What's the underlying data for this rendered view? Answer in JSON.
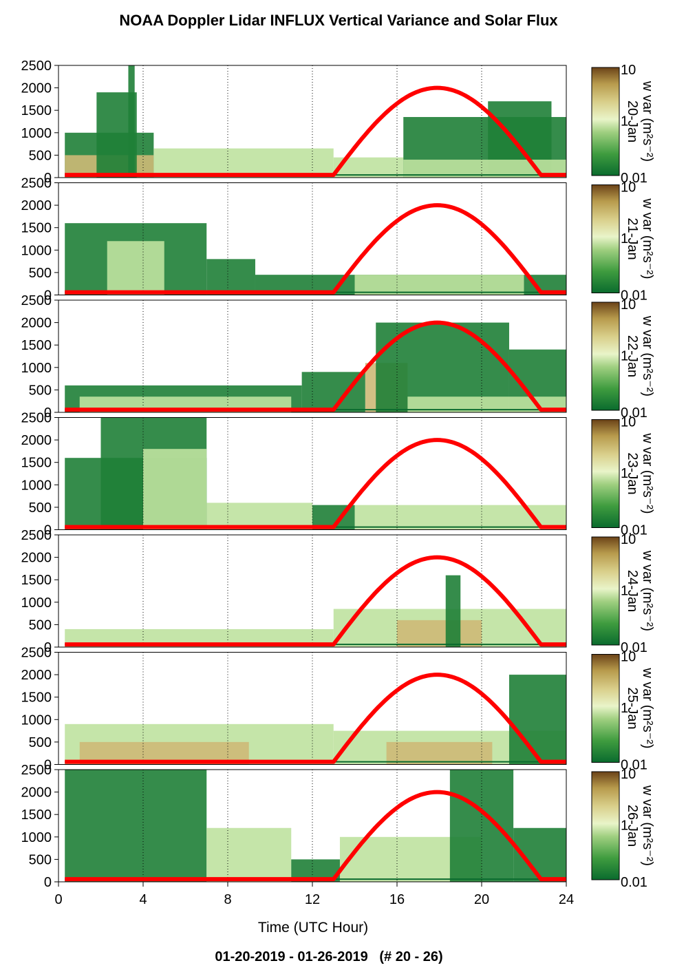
{
  "title": "NOAA Doppler Lidar INFLUX Vertical Variance and Solar Flux",
  "footer": "01-20-2019 - 01-26-2019   (# 20 - 26)",
  "colors": {
    "solar_curve": "#ff0000",
    "colormap": [
      "#0a6b2e",
      "#3f9c3f",
      "#9fcf80",
      "#e9f4c9",
      "#d9cf8b",
      "#b79a4c",
      "#6b4318"
    ]
  },
  "chart_data": {
    "type": "heatmap",
    "xlabel": "Time (UTC Hour)",
    "xlim": [
      0,
      24
    ],
    "x_ticks": [
      "0",
      "4",
      "8",
      "12",
      "16",
      "20",
      "24"
    ],
    "ylim": [
      0,
      2500
    ],
    "y_ticks": [
      "0",
      "500",
      "1000",
      "1500",
      "2000",
      "2500"
    ],
    "grid": "vertical dotted lines at 4-hour intervals",
    "colorbar": {
      "label": "w var (m²s⁻²)",
      "ticks": [
        "10",
        "1",
        "0.01"
      ],
      "scale": "log"
    },
    "solar_flux": {
      "sunrise_hour": 13.0,
      "solar_noon_hour": 18.0,
      "sunset_hour": 22.8,
      "peak_on_height_axis": 2000
    },
    "panels": [
      {
        "date": "20-Jan",
        "regions": [
          {
            "x": [
              0.3,
              4.5
            ],
            "top": 1000,
            "level": "low"
          },
          {
            "x": [
              0.3,
              4.5
            ],
            "top": 500,
            "level": "high"
          },
          {
            "x": [
              1.8,
              3.7
            ],
            "top": 1900,
            "level": "low"
          },
          {
            "x": [
              3.3,
              3.6
            ],
            "top": 2500,
            "level": "low"
          },
          {
            "x": [
              4.5,
              13.0
            ],
            "top": 650,
            "level": "mid"
          },
          {
            "x": [
              13.0,
              16.3
            ],
            "top": 450,
            "level": "mid"
          },
          {
            "x": [
              16.3,
              24.0
            ],
            "top": 1350,
            "level": "low"
          },
          {
            "x": [
              20.3,
              23.3
            ],
            "top": 1700,
            "level": "low"
          },
          {
            "x": [
              16.3,
              24.0
            ],
            "top": 400,
            "level": "mid"
          }
        ]
      },
      {
        "date": "21-Jan",
        "regions": [
          {
            "x": [
              0.3,
              7.0
            ],
            "top": 1600,
            "level": "low"
          },
          {
            "x": [
              2.3,
              5.0
            ],
            "top": 1200,
            "level": "mid"
          },
          {
            "x": [
              7.0,
              9.3
            ],
            "top": 800,
            "level": "low"
          },
          {
            "x": [
              9.3,
              24.0
            ],
            "top": 450,
            "level": "low"
          },
          {
            "x": [
              14.0,
              22.0
            ],
            "top": 450,
            "level": "mid"
          }
        ]
      },
      {
        "date": "22-Jan",
        "regions": [
          {
            "x": [
              0.3,
              11.5
            ],
            "top": 600,
            "level": "low"
          },
          {
            "x": [
              1.0,
              11.0
            ],
            "top": 350,
            "level": "mid"
          },
          {
            "x": [
              11.5,
              14.5
            ],
            "top": 900,
            "level": "low"
          },
          {
            "x": [
              14.5,
              16.5
            ],
            "top": 1100,
            "level": "high"
          },
          {
            "x": [
              15.0,
              21.3
            ],
            "top": 2000,
            "level": "low"
          },
          {
            "x": [
              21.3,
              24.0
            ],
            "top": 1400,
            "level": "low"
          },
          {
            "x": [
              16.5,
              24.0
            ],
            "top": 350,
            "level": "mid"
          }
        ]
      },
      {
        "date": "23-Jan",
        "regions": [
          {
            "x": [
              0.3,
              7.0
            ],
            "top": 1600,
            "level": "low"
          },
          {
            "x": [
              2.0,
              7.0
            ],
            "top": 2500,
            "level": "low"
          },
          {
            "x": [
              4.0,
              7.0
            ],
            "top": 1800,
            "level": "mid"
          },
          {
            "x": [
              7.0,
              12.0
            ],
            "top": 600,
            "level": "mid"
          },
          {
            "x": [
              12.0,
              14.0
            ],
            "top": 550,
            "level": "low"
          },
          {
            "x": [
              14.0,
              24.0
            ],
            "top": 550,
            "level": "mid"
          }
        ]
      },
      {
        "date": "24-Jan",
        "regions": [
          {
            "x": [
              0.3,
              13.0
            ],
            "top": 400,
            "level": "mid"
          },
          {
            "x": [
              13.0,
              24.0
            ],
            "top": 850,
            "level": "mid"
          },
          {
            "x": [
              16.0,
              20.0
            ],
            "top": 600,
            "level": "high"
          },
          {
            "x": [
              18.3,
              19.0
            ],
            "top": 1600,
            "level": "low"
          }
        ]
      },
      {
        "date": "25-Jan",
        "regions": [
          {
            "x": [
              0.3,
              13.0
            ],
            "top": 900,
            "level": "mid"
          },
          {
            "x": [
              1.0,
              9.0
            ],
            "top": 500,
            "level": "high"
          },
          {
            "x": [
              13.0,
              24.0
            ],
            "top": 750,
            "level": "mid"
          },
          {
            "x": [
              15.5,
              20.5
            ],
            "top": 500,
            "level": "high"
          },
          {
            "x": [
              21.3,
              24.0
            ],
            "top": 2000,
            "level": "low"
          }
        ]
      },
      {
        "date": "26-Jan",
        "regions": [
          {
            "x": [
              0.3,
              7.0
            ],
            "top": 2500,
            "level": "low"
          },
          {
            "x": [
              7.0,
              11.0
            ],
            "top": 1200,
            "level": "mid"
          },
          {
            "x": [
              11.0,
              13.3
            ],
            "top": 500,
            "level": "low"
          },
          {
            "x": [
              13.3,
              20.0
            ],
            "top": 1000,
            "level": "mid"
          },
          {
            "x": [
              18.5,
              21.5
            ],
            "top": 2500,
            "level": "low"
          },
          {
            "x": [
              21.5,
              24.0
            ],
            "top": 1200,
            "level": "low"
          }
        ]
      }
    ]
  }
}
